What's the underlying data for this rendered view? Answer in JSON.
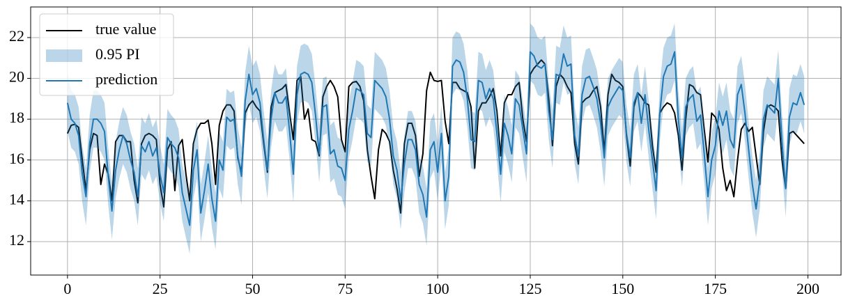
{
  "chart_data": {
    "type": "line",
    "x": [
      0,
      1,
      2,
      3,
      4,
      5,
      6,
      7,
      8,
      9,
      10,
      11,
      12,
      13,
      14,
      15,
      16,
      17,
      18,
      19,
      20,
      21,
      22,
      23,
      24,
      25,
      26,
      27,
      28,
      29,
      30,
      31,
      32,
      33,
      34,
      35,
      36,
      37,
      38,
      39,
      40,
      41,
      42,
      43,
      44,
      45,
      46,
      47,
      48,
      49,
      50,
      51,
      52,
      53,
      54,
      55,
      56,
      57,
      58,
      59,
      60,
      61,
      62,
      63,
      64,
      65,
      66,
      67,
      68,
      69,
      70,
      71,
      72,
      73,
      74,
      75,
      76,
      77,
      78,
      79,
      80,
      81,
      82,
      83,
      84,
      85,
      86,
      87,
      88,
      89,
      90,
      91,
      92,
      93,
      94,
      95,
      96,
      97,
      98,
      99,
      100,
      101,
      102,
      103,
      104,
      105,
      106,
      107,
      108,
      109,
      110,
      111,
      112,
      113,
      114,
      115,
      116,
      117,
      118,
      119,
      120,
      121,
      122,
      123,
      124,
      125,
      126,
      127,
      128,
      129,
      130,
      131,
      132,
      133,
      134,
      135,
      136,
      137,
      138,
      139,
      140,
      141,
      142,
      143,
      144,
      145,
      146,
      147,
      148,
      149,
      150,
      151,
      152,
      153,
      154,
      155,
      156,
      157,
      158,
      159,
      160,
      161,
      162,
      163,
      164,
      165,
      166,
      167,
      168,
      169,
      170,
      171,
      172,
      173,
      174,
      175,
      176,
      177,
      178,
      179,
      180,
      181,
      182,
      183,
      184,
      185,
      186,
      187,
      188,
      189,
      190,
      191,
      192,
      193,
      194,
      195,
      196,
      197,
      198,
      199
    ],
    "series": [
      {
        "name": "true value",
        "style": "line",
        "color": "#000000",
        "values": [
          17.3,
          17.7,
          17.75,
          17.6,
          16.0,
          14.5,
          16.5,
          17.3,
          17.2,
          14.8,
          15.8,
          15.3,
          14.0,
          16.9,
          17.2,
          17.2,
          16.9,
          16.9,
          15.0,
          13.9,
          16.8,
          17.2,
          17.3,
          17.2,
          17.0,
          14.8,
          13.7,
          16.5,
          16.9,
          14.5,
          16.7,
          17.0,
          15.3,
          14.0,
          16.8,
          17.5,
          17.8,
          17.8,
          17.95,
          16.8,
          14.8,
          17.7,
          18.4,
          18.7,
          18.7,
          18.4,
          16.1,
          15.4,
          18.3,
          18.7,
          18.9,
          18.6,
          18.4,
          16.8,
          15.4,
          18.6,
          19.3,
          19.4,
          19.5,
          19.7,
          18.3,
          17.0,
          19.9,
          20.1,
          18.0,
          18.5,
          17.0,
          16.9,
          16.2,
          19.1,
          19.6,
          19.9,
          19.6,
          19.1,
          17.0,
          16.4,
          19.6,
          19.8,
          19.85,
          19.6,
          18.9,
          16.5,
          15.2,
          14.1,
          16.5,
          17.5,
          17.3,
          16.9,
          15.5,
          14.6,
          13.4,
          16.8,
          17.8,
          17.8,
          17.2,
          15.2,
          16.3,
          19.4,
          20.3,
          19.9,
          19.85,
          19.9,
          17.9,
          16.8,
          19.8,
          19.8,
          19.5,
          19.4,
          19.3,
          18.6,
          15.6,
          18.4,
          18.8,
          18.8,
          19.1,
          19.5,
          18.4,
          16.2,
          18.8,
          19.2,
          19.2,
          19.6,
          19.8,
          18.0,
          16.9,
          20.2,
          20.5,
          20.7,
          20.9,
          20.7,
          19.0,
          16.7,
          19.6,
          20.2,
          20.0,
          19.6,
          19.3,
          16.8,
          15.8,
          18.8,
          19.0,
          19.1,
          19.4,
          19.6,
          18.6,
          16.4,
          19.2,
          20.2,
          19.9,
          19.8,
          19.6,
          17.2,
          15.7,
          18.6,
          19.3,
          19.1,
          18.8,
          18.7,
          16.7,
          15.4,
          18.3,
          18.6,
          18.8,
          18.7,
          18.3,
          17.2,
          15.5,
          18.0,
          19.7,
          19.6,
          19.3,
          19.2,
          17.5,
          15.9,
          18.3,
          18.1,
          17.5,
          15.6,
          14.5,
          15.0,
          14.2,
          16.0,
          17.5,
          17.8,
          17.4,
          17.6,
          16.2,
          14.8,
          17.4,
          18.6,
          18.7,
          18.6,
          18.4,
          16.0,
          14.6,
          17.3,
          17.4,
          17.2,
          17.0,
          16.8
        ]
      },
      {
        "name": "0.95 PI",
        "style": "band",
        "color": "#1f77b4",
        "lower": [
          17.4,
          16.6,
          16.4,
          15.8,
          13.9,
          12.8,
          15.4,
          16.6,
          16.6,
          16.4,
          16.0,
          13.8,
          12.1,
          14.1,
          15.1,
          15.8,
          15.4,
          14.6,
          14.0,
          12.8,
          15.3,
          15.0,
          15.5,
          14.8,
          15.2,
          13.9,
          13.0,
          15.7,
          15.4,
          15.2,
          14.7,
          13.0,
          12.2,
          11.4,
          14.1,
          15.1,
          12.0,
          13.1,
          14.4,
          12.7,
          11.6,
          14.6,
          14.1,
          16.7,
          16.5,
          16.6,
          14.8,
          13.8,
          17.5,
          18.8,
          17.8,
          18.1,
          17.4,
          15.6,
          14.1,
          16.6,
          17.9,
          17.4,
          17.4,
          17.7,
          16.0,
          13.9,
          17.8,
          18.8,
          18.9,
          18.8,
          18.4,
          16.8,
          14.9,
          17.2,
          17.3,
          14.9,
          15.1,
          14.3,
          14.2,
          13.6,
          16.1,
          17.0,
          18.1,
          18.0,
          17.8,
          15.9,
          15.7,
          18.5,
          18.3,
          18.1,
          17.7,
          16.6,
          14.8,
          14.1,
          12.6,
          14.4,
          15.6,
          15.6,
          15.1,
          13.4,
          12.9,
          11.8,
          15.1,
          15.5,
          14.0,
          15.9,
          12.6,
          13.8,
          19.2,
          19.5,
          19.4,
          18.9,
          17.6,
          15.6,
          15.5,
          18.5,
          18.4,
          17.6,
          18.1,
          17.6,
          15.9,
          13.9,
          16.4,
          15.8,
          14.9,
          17.6,
          17.3,
          16.1,
          14.9,
          19.9,
          19.7,
          19.2,
          19.1,
          19.3,
          17.0,
          15.6,
          18.8,
          18.7,
          19.8,
          19.2,
          19.3,
          15.8,
          14.8,
          17.8,
          18.6,
          18.7,
          18.2,
          17.6,
          16.4,
          14.7,
          17.2,
          17.6,
          17.9,
          18.2,
          18.0,
          15.9,
          14.7,
          17.4,
          17.9,
          16.4,
          17.8,
          16.1,
          14.6,
          13.1,
          16.9,
          18.7,
          19.2,
          19.3,
          19.9,
          16.6,
          14.7,
          17.2,
          17.6,
          17.8,
          16.5,
          16.8,
          14.9,
          12.8,
          14.6,
          15.3,
          17.0,
          16.3,
          17.0,
          15.6,
          15.2,
          17.8,
          18.3,
          16.9,
          15.1,
          13.4,
          12.2,
          13.6,
          16.6,
          17.3,
          17.1,
          16.9,
          18.6,
          15.5,
          13.2,
          16.7,
          17.4,
          17.3,
          17.9,
          17.3
        ],
        "upper": [
          20.2,
          19.4,
          19.2,
          18.6,
          16.7,
          15.6,
          18.2,
          19.4,
          19.4,
          19.2,
          18.8,
          16.6,
          14.9,
          16.9,
          17.9,
          18.6,
          18.2,
          17.4,
          16.8,
          15.6,
          18.1,
          17.8,
          18.3,
          17.6,
          18.0,
          16.7,
          15.8,
          18.5,
          18.2,
          18.0,
          17.5,
          15.8,
          15.0,
          14.2,
          16.9,
          17.9,
          14.8,
          15.9,
          17.2,
          15.5,
          14.4,
          17.4,
          16.9,
          19.5,
          19.3,
          19.4,
          17.6,
          16.6,
          20.3,
          21.6,
          20.6,
          20.9,
          20.2,
          18.4,
          16.9,
          19.4,
          20.7,
          20.2,
          20.2,
          20.5,
          18.8,
          16.7,
          20.6,
          21.6,
          21.7,
          21.6,
          21.2,
          19.6,
          17.7,
          20.0,
          20.1,
          17.7,
          17.9,
          17.1,
          17.0,
          16.4,
          18.9,
          19.8,
          20.9,
          20.8,
          20.6,
          18.7,
          18.5,
          21.3,
          21.1,
          20.9,
          20.5,
          19.4,
          17.6,
          16.9,
          15.4,
          17.2,
          18.4,
          18.4,
          17.9,
          16.2,
          15.7,
          14.6,
          17.9,
          18.3,
          16.8,
          18.7,
          15.4,
          16.6,
          22.0,
          22.3,
          22.2,
          21.7,
          20.4,
          18.4,
          18.3,
          21.3,
          21.2,
          20.4,
          20.9,
          20.4,
          18.7,
          16.7,
          19.2,
          18.6,
          17.7,
          20.4,
          20.1,
          18.9,
          17.7,
          22.7,
          22.5,
          22.0,
          21.9,
          22.1,
          19.8,
          18.4,
          21.6,
          21.5,
          22.6,
          22.0,
          22.1,
          18.6,
          17.6,
          20.6,
          21.4,
          21.5,
          21.0,
          20.4,
          19.2,
          17.5,
          20.0,
          20.4,
          20.7,
          21.0,
          20.8,
          18.7,
          17.5,
          20.2,
          20.7,
          19.2,
          20.6,
          18.9,
          17.4,
          15.9,
          19.7,
          21.5,
          22.0,
          22.1,
          22.7,
          19.4,
          17.5,
          20.0,
          20.4,
          20.6,
          19.3,
          19.6,
          17.7,
          15.6,
          17.4,
          18.1,
          19.8,
          19.1,
          19.8,
          18.4,
          18.0,
          20.6,
          21.1,
          19.7,
          17.9,
          16.2,
          15.0,
          16.4,
          19.4,
          20.1,
          19.9,
          19.7,
          21.4,
          18.3,
          16.0,
          19.5,
          20.2,
          20.1,
          20.7,
          20.1
        ]
      },
      {
        "name": "prediction",
        "style": "line",
        "color": "#1f77b4",
        "values": [
          18.8,
          18.0,
          17.8,
          17.2,
          15.3,
          14.2,
          16.8,
          18.0,
          18.0,
          17.8,
          17.4,
          15.2,
          13.5,
          15.5,
          16.5,
          17.2,
          16.8,
          16.0,
          15.4,
          14.2,
          16.7,
          16.4,
          16.9,
          16.2,
          16.6,
          15.3,
          14.4,
          17.1,
          16.8,
          16.6,
          16.1,
          14.4,
          13.6,
          12.8,
          15.5,
          16.5,
          13.4,
          14.5,
          15.8,
          14.1,
          13.0,
          16.0,
          15.5,
          18.1,
          17.9,
          18.0,
          16.2,
          15.2,
          18.9,
          20.2,
          19.2,
          19.5,
          18.8,
          17.0,
          15.5,
          18.0,
          19.3,
          18.8,
          18.8,
          19.1,
          17.4,
          15.3,
          19.2,
          20.2,
          20.3,
          20.2,
          19.8,
          18.2,
          16.3,
          18.6,
          18.7,
          16.3,
          16.5,
          15.7,
          15.6,
          15.0,
          17.5,
          18.4,
          19.5,
          19.4,
          19.2,
          17.3,
          17.1,
          19.9,
          19.7,
          19.5,
          19.1,
          18.0,
          16.2,
          15.5,
          14.0,
          15.8,
          17.0,
          17.0,
          16.5,
          14.8,
          14.3,
          13.2,
          16.5,
          16.9,
          15.4,
          17.3,
          14.0,
          15.2,
          20.6,
          20.9,
          20.8,
          20.3,
          19.0,
          17.0,
          16.9,
          19.9,
          19.8,
          19.0,
          19.5,
          19.0,
          17.3,
          15.3,
          17.8,
          17.2,
          16.3,
          19.0,
          18.7,
          17.5,
          16.3,
          21.3,
          21.1,
          20.6,
          20.5,
          20.7,
          18.4,
          17.0,
          20.2,
          20.1,
          21.2,
          20.6,
          20.7,
          17.2,
          16.2,
          19.2,
          20.0,
          20.1,
          19.6,
          19.0,
          17.8,
          16.1,
          18.6,
          19.0,
          19.3,
          19.6,
          19.4,
          17.3,
          16.1,
          18.8,
          19.3,
          17.8,
          19.2,
          17.5,
          16.0,
          14.5,
          18.3,
          20.1,
          20.6,
          20.7,
          21.3,
          18.0,
          16.1,
          18.6,
          19.0,
          19.2,
          17.9,
          18.2,
          16.3,
          14.2,
          16.0,
          16.7,
          18.4,
          17.7,
          18.4,
          17.0,
          16.6,
          19.2,
          19.7,
          18.3,
          16.5,
          14.8,
          13.6,
          15.0,
          18.0,
          18.7,
          18.5,
          18.3,
          20.0,
          16.9,
          14.6,
          18.1,
          18.8,
          18.7,
          19.3,
          18.7
        ]
      }
    ],
    "xlim": [
      -9.95,
      208.95
    ],
    "ylim": [
      10.36,
      23.5
    ],
    "xticks": [
      0,
      25,
      50,
      75,
      100,
      125,
      150,
      175,
      200
    ],
    "yticks": [
      12,
      14,
      16,
      18,
      20,
      22
    ],
    "grid": true,
    "legend": "upper left"
  }
}
